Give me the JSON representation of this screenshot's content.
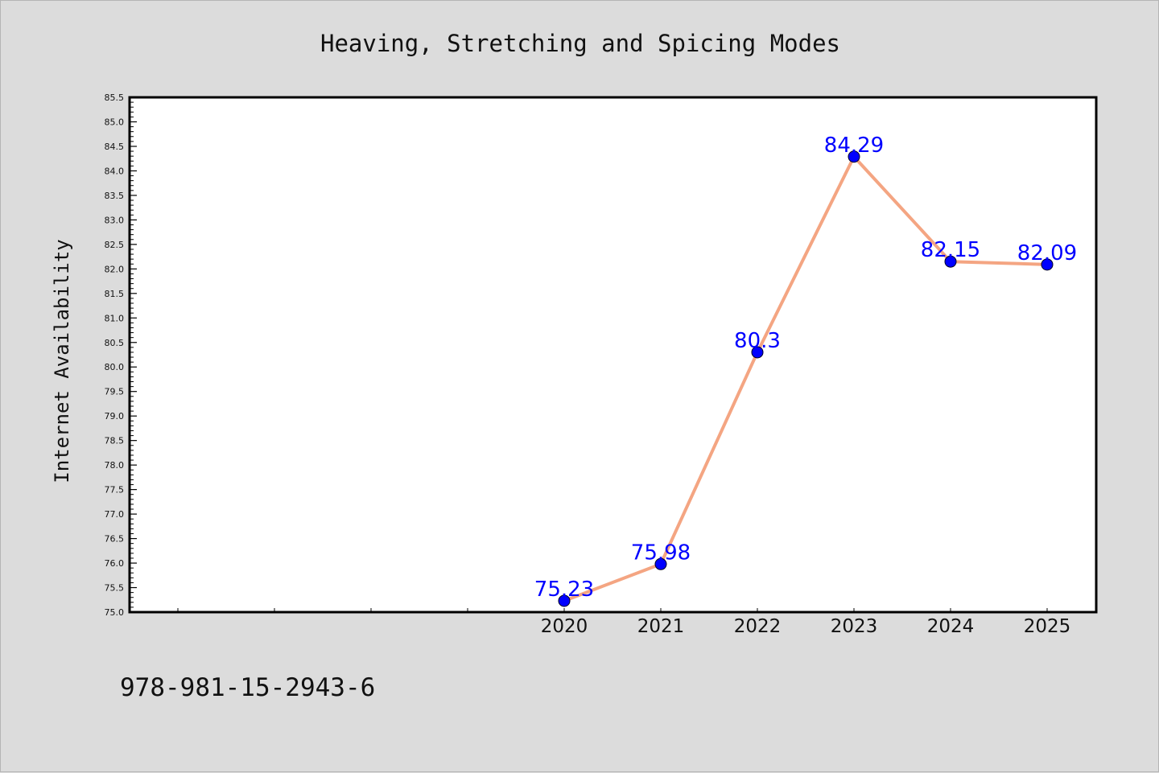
{
  "chart_data": {
    "type": "line",
    "title": "Heaving, Stretching and Spicing Modes",
    "xlabel": "",
    "ylabel": "Internet Availability",
    "categories": [
      "2020",
      "2021",
      "2022",
      "2023",
      "2024",
      "2025"
    ],
    "x_slots": 10,
    "series": [
      {
        "values": [
          75.23,
          75.98,
          80.3,
          84.29,
          82.15,
          82.09
        ],
        "labels": [
          "75.23",
          "75.98",
          "80.3",
          "84.29",
          "82.15",
          "82.09"
        ],
        "line_color": "#f4a582",
        "marker_color": "#0000ff"
      }
    ],
    "ylim": [
      75.0,
      85.5
    ],
    "yticks": [
      "75.0",
      "75.5",
      "76.0",
      "76.5",
      "77.0",
      "77.5",
      "78.0",
      "78.5",
      "79.0",
      "79.5",
      "80.0",
      "80.5",
      "81.0",
      "81.5",
      "82.0",
      "82.5",
      "83.0",
      "83.5",
      "84.0",
      "84.5",
      "85.0",
      "85.5"
    ],
    "grid": false,
    "legend": "none"
  },
  "footer_text": "978-981-15-2943-6",
  "colors": {
    "background": "#dcdcdc",
    "plot_background": "#ffffff",
    "axis": "#000000",
    "label": "#0000ff"
  }
}
